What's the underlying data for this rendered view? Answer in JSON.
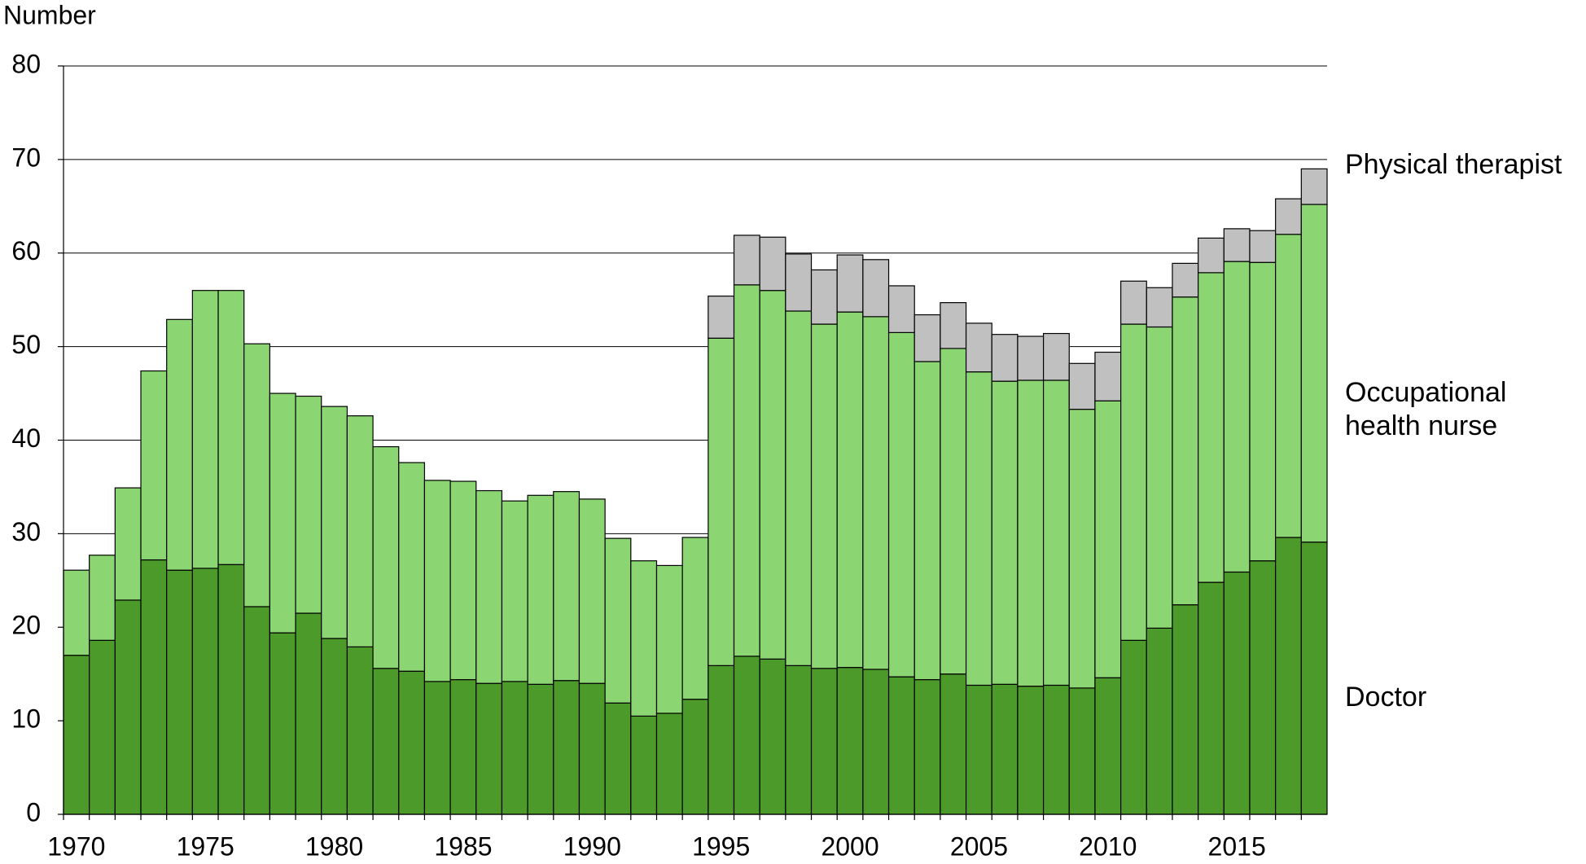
{
  "chart_data": {
    "type": "stacked_bar",
    "y_label": "Number",
    "categories": [
      "1970",
      null,
      null,
      null,
      null,
      "1975",
      null,
      null,
      null,
      null,
      "1980",
      null,
      null,
      null,
      null,
      "1985",
      null,
      null,
      null,
      null,
      "1990",
      null,
      null,
      null,
      null,
      "1995",
      null,
      null,
      null,
      null,
      "2000",
      null,
      null,
      null,
      null,
      "2005",
      null,
      null,
      null,
      null,
      "2010",
      null,
      null,
      null,
      null,
      "2015",
      null,
      null,
      null
    ],
    "series": [
      {
        "name": "Doctor",
        "color": "#4c9a2a",
        "values": [
          17.0,
          18.6,
          22.9,
          27.2,
          26.1,
          26.3,
          26.7,
          22.2,
          19.4,
          21.5,
          18.8,
          17.9,
          15.6,
          15.3,
          14.2,
          14.4,
          14.0,
          14.2,
          13.9,
          14.3,
          14.0,
          11.9,
          10.5,
          10.8,
          12.3,
          15.9,
          16.9,
          16.6,
          15.9,
          15.6,
          15.7,
          15.5,
          14.7,
          14.4,
          15.0,
          13.8,
          13.9,
          13.7,
          13.8,
          13.5,
          14.6,
          18.6,
          19.9,
          22.4,
          24.8,
          25.9,
          27.1,
          29.6,
          29.1
        ]
      },
      {
        "name": "Occupational health nurse",
        "color": "#8bd672",
        "values": [
          9.1,
          9.1,
          12.0,
          20.2,
          26.8,
          29.7,
          29.3,
          28.1,
          25.6,
          23.2,
          24.8,
          24.7,
          23.7,
          22.3,
          21.5,
          21.2,
          20.6,
          19.3,
          20.2,
          20.2,
          19.7,
          17.6,
          16.6,
          15.8,
          17.3,
          35.0,
          39.7,
          39.4,
          37.9,
          36.8,
          38.0,
          37.7,
          36.8,
          34.0,
          34.8,
          33.5,
          32.4,
          32.7,
          32.6,
          29.8,
          29.6,
          33.8,
          32.2,
          32.9,
          33.1,
          33.2,
          31.9,
          32.4,
          36.1
        ]
      },
      {
        "name": "Physical therapist",
        "color": "#c0c0c0",
        "values": [
          null,
          null,
          null,
          null,
          null,
          null,
          null,
          null,
          null,
          null,
          null,
          null,
          null,
          null,
          null,
          null,
          null,
          null,
          null,
          null,
          null,
          null,
          null,
          null,
          null,
          4.5,
          5.3,
          5.7,
          6.1,
          5.8,
          6.1,
          6.1,
          5.0,
          5.0,
          4.9,
          5.2,
          5.0,
          4.7,
          5.0,
          4.9,
          5.2,
          4.6,
          4.2,
          3.6,
          3.7,
          3.5,
          3.4,
          3.8,
          3.8
        ]
      }
    ],
    "ylim": [
      0,
      80
    ],
    "yticks": [
      0,
      10,
      20,
      30,
      40,
      50,
      60,
      70,
      80
    ],
    "grid": true
  }
}
